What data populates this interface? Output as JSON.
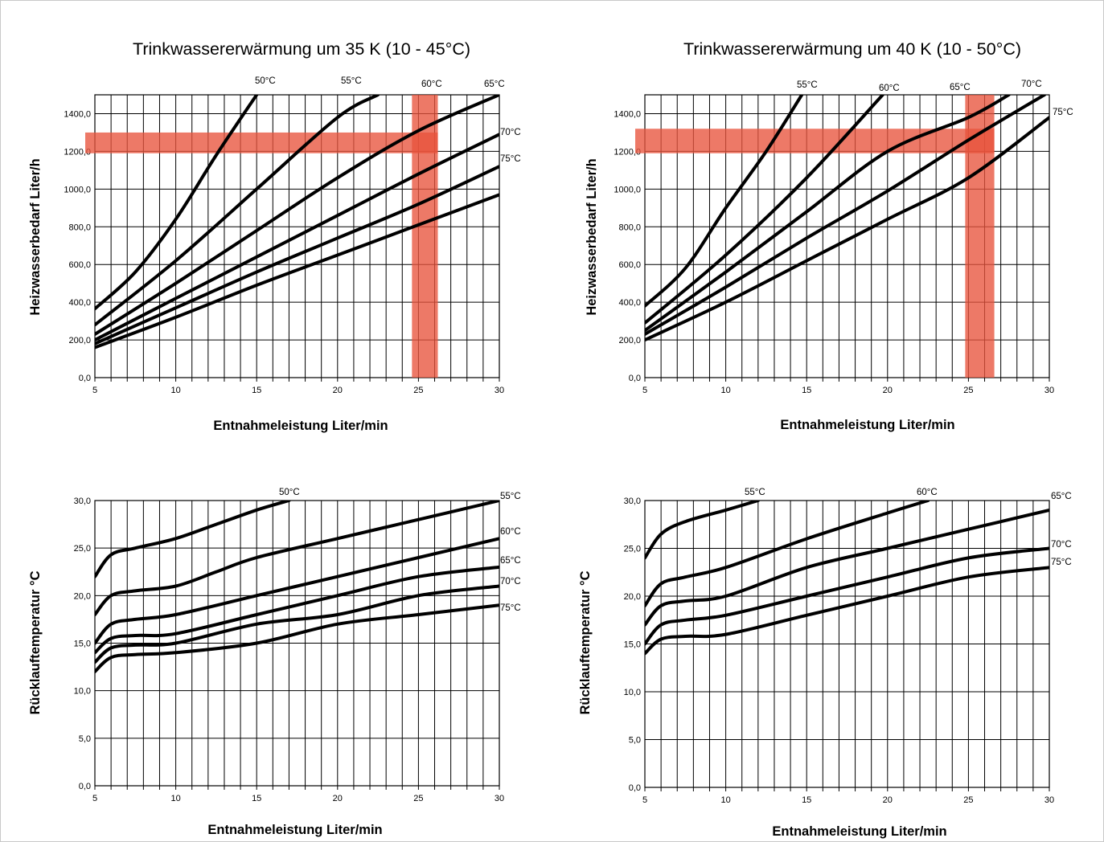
{
  "chart_data": [
    {
      "type": "line",
      "title": "Trinkwassererwärmung um 35 K (10 - 45°C)",
      "xlabel": "Entnahmeleistung Liter/min",
      "ylabel": "Heizwasserbedarf Liter/h",
      "xlim": [
        5,
        30
      ],
      "ylim": [
        0,
        1500
      ],
      "xticks": [
        "5",
        "10",
        "15",
        "20",
        "25",
        "30"
      ],
      "yticks": [
        "0,0",
        "200,0",
        "400,0",
        "600,0",
        "800,0",
        "1000,0",
        "1200,0",
        "1400,0"
      ],
      "grid": true,
      "highlight": {
        "x_band": [
          24.6,
          26.2
        ],
        "y_band": [
          1190,
          1300
        ],
        "color": "#e8533c"
      },
      "series": [
        {
          "name": "50°C",
          "x": [
            5,
            7.5,
            10,
            12.5,
            15
          ],
          "y": [
            365,
            560,
            840,
            1180,
            1500
          ]
        },
        {
          "name": "55°C",
          "x": [
            5,
            10,
            15,
            20,
            22.5
          ],
          "y": [
            280,
            620,
            1000,
            1380,
            1500
          ]
        },
        {
          "name": "60°C",
          "x": [
            5,
            10,
            15,
            20,
            25,
            30
          ],
          "y": [
            230,
            500,
            780,
            1060,
            1310,
            1500
          ]
        },
        {
          "name": "65°C",
          "x": [
            5,
            10,
            15,
            20,
            25,
            30
          ],
          "y": [
            200,
            420,
            640,
            860,
            1080,
            1290
          ]
        },
        {
          "name": "70°C",
          "x": [
            5,
            10,
            15,
            20,
            25,
            30
          ],
          "y": [
            180,
            370,
            560,
            740,
            920,
            1120
          ]
        },
        {
          "name": "75°C",
          "x": [
            5,
            10,
            15,
            20,
            25,
            30
          ],
          "y": [
            160,
            320,
            490,
            650,
            810,
            970
          ]
        }
      ]
    },
    {
      "type": "line",
      "title": "Trinkwassererwärmung um 40 K (10 - 50°C)",
      "xlabel": "Entnahmeleistung Liter/min",
      "ylabel": "Heizwasserbedarf Liter/h",
      "xlim": [
        5,
        30
      ],
      "ylim": [
        0,
        1500
      ],
      "xticks": [
        "5",
        "10",
        "15",
        "20",
        "25",
        "30"
      ],
      "yticks": [
        "0,0",
        "200,0",
        "400,0",
        "600,0",
        "800,0",
        "1000,0",
        "1200,0",
        "1400,0"
      ],
      "grid": true,
      "highlight": {
        "x_band": [
          24.8,
          26.6
        ],
        "y_band": [
          1190,
          1320
        ],
        "color": "#e8533c"
      },
      "series": [
        {
          "name": "55°C",
          "x": [
            5,
            7.5,
            10,
            12.5,
            14.7
          ],
          "y": [
            380,
            580,
            900,
            1200,
            1500
          ]
        },
        {
          "name": "60°C",
          "x": [
            5,
            10,
            15,
            19.7
          ],
          "y": [
            290,
            650,
            1060,
            1500
          ]
        },
        {
          "name": "65°C",
          "x": [
            5,
            10,
            15,
            20,
            25,
            27.5
          ],
          "y": [
            250,
            560,
            880,
            1200,
            1380,
            1500
          ]
        },
        {
          "name": "70°C",
          "x": [
            5,
            10,
            15,
            20,
            25,
            29.7
          ],
          "y": [
            230,
            480,
            740,
            990,
            1260,
            1500
          ]
        },
        {
          "name": "75°C",
          "x": [
            5,
            10,
            15,
            20,
            25,
            30
          ],
          "y": [
            200,
            400,
            620,
            840,
            1060,
            1380
          ]
        }
      ]
    },
    {
      "type": "line",
      "xlabel": "Entnahmeleistung Liter/min",
      "ylabel": "Rücklauftemperatur °C",
      "xlim": [
        5,
        30
      ],
      "ylim": [
        0,
        30
      ],
      "xticks": [
        "5",
        "10",
        "15",
        "20",
        "25",
        "30"
      ],
      "yticks": [
        "0,0",
        "5,0",
        "10,0",
        "15,0",
        "20,0",
        "25,0",
        "30,0"
      ],
      "grid": true,
      "series": [
        {
          "name": "50°C",
          "x": [
            5,
            6,
            7.5,
            10,
            12.5,
            15,
            17
          ],
          "y": [
            22,
            24.3,
            25,
            26,
            27.5,
            29,
            30
          ]
        },
        {
          "name": "55°C",
          "x": [
            5,
            6,
            7.5,
            10,
            12.5,
            15,
            20,
            25,
            30
          ],
          "y": [
            18,
            20,
            20.5,
            21,
            22.5,
            24,
            26,
            28,
            30
          ]
        },
        {
          "name": "60°C",
          "x": [
            5,
            6,
            7.5,
            10,
            15,
            20,
            25,
            30
          ],
          "y": [
            15,
            17,
            17.5,
            18,
            20,
            22,
            24,
            26
          ]
        },
        {
          "name": "65°C",
          "x": [
            5,
            6,
            7.5,
            10,
            15,
            20,
            25,
            30
          ],
          "y": [
            14,
            15.5,
            15.8,
            16,
            18,
            20,
            22,
            23
          ]
        },
        {
          "name": "70°C",
          "x": [
            5,
            6,
            7.5,
            10,
            15,
            20,
            25,
            30
          ],
          "y": [
            13,
            14.5,
            14.8,
            15,
            17,
            18,
            20,
            21
          ]
        },
        {
          "name": "75°C",
          "x": [
            5,
            6,
            7.5,
            10,
            15,
            20,
            25,
            30
          ],
          "y": [
            12,
            13.5,
            13.8,
            14,
            15,
            17,
            18,
            19
          ]
        }
      ]
    },
    {
      "type": "line",
      "xlabel": "Entnahmeleistung Liter/min",
      "ylabel": "Rücklauftemperatur °C",
      "xlim": [
        5,
        30
      ],
      "ylim": [
        0,
        30
      ],
      "xticks": [
        "5",
        "10",
        "15",
        "20",
        "25",
        "30"
      ],
      "yticks": [
        "0,0",
        "5,0",
        "10,0",
        "15,0",
        "20,0",
        "25,0",
        "30,0"
      ],
      "grid": true,
      "series": [
        {
          "name": "55°C",
          "x": [
            5,
            6,
            7.5,
            10,
            12
          ],
          "y": [
            24,
            26.5,
            27.8,
            29,
            30
          ]
        },
        {
          "name": "60°C",
          "x": [
            5,
            6,
            7.5,
            10,
            15,
            20,
            22.5
          ],
          "y": [
            19,
            21.3,
            22,
            23,
            26,
            28.7,
            30
          ]
        },
        {
          "name": "65°C",
          "x": [
            5,
            6,
            7.5,
            10,
            15,
            20,
            25,
            30
          ],
          "y": [
            17,
            19,
            19.5,
            20,
            23,
            25,
            27,
            29
          ]
        },
        {
          "name": "70°C",
          "x": [
            5,
            6,
            7.5,
            10,
            15,
            20,
            25,
            30
          ],
          "y": [
            15,
            17,
            17.5,
            18,
            20,
            22,
            24,
            25
          ]
        },
        {
          "name": "75°C",
          "x": [
            5,
            6,
            7.5,
            10,
            15,
            20,
            25,
            30
          ],
          "y": [
            14,
            15.5,
            15.8,
            16,
            18,
            20,
            22,
            23
          ]
        }
      ]
    }
  ]
}
